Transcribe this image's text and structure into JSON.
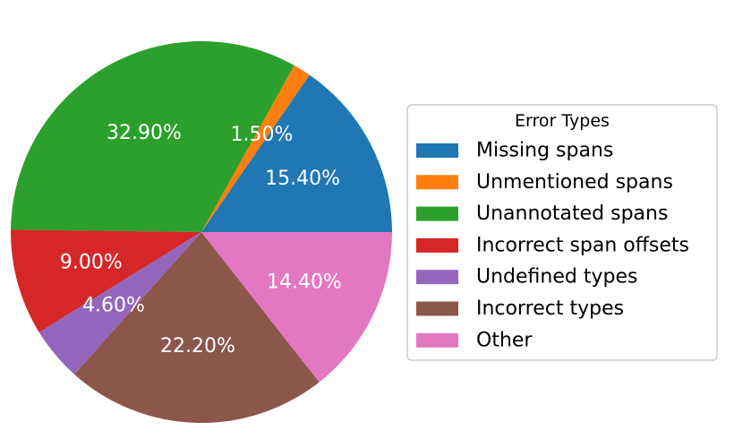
{
  "chart_data": {
    "type": "pie",
    "legend_title": "Error Types",
    "legend_position": "right",
    "start_angle_deg": 0,
    "direction": "counterclockwise",
    "slices": [
      {
        "name": "Missing spans",
        "value": 15.4,
        "label": "15.40%",
        "color": "#1f77b4"
      },
      {
        "name": "Unmentioned spans",
        "value": 1.5,
        "label": "1.50%",
        "color": "#ff7f0e"
      },
      {
        "name": "Unannotated spans",
        "value": 32.9,
        "label": "32.90%",
        "color": "#2ca02c"
      },
      {
        "name": "Incorrect span offsets",
        "value": 9.0,
        "label": "9.00%",
        "color": "#d62728"
      },
      {
        "name": "Undefined types",
        "value": 4.6,
        "label": "4.60%",
        "color": "#9467bd"
      },
      {
        "name": "Incorrect types",
        "value": 22.2,
        "label": "22.20%",
        "color": "#8c564b"
      },
      {
        "name": "Other",
        "value": 14.4,
        "label": "14.40%",
        "color": "#e377c2"
      }
    ]
  }
}
